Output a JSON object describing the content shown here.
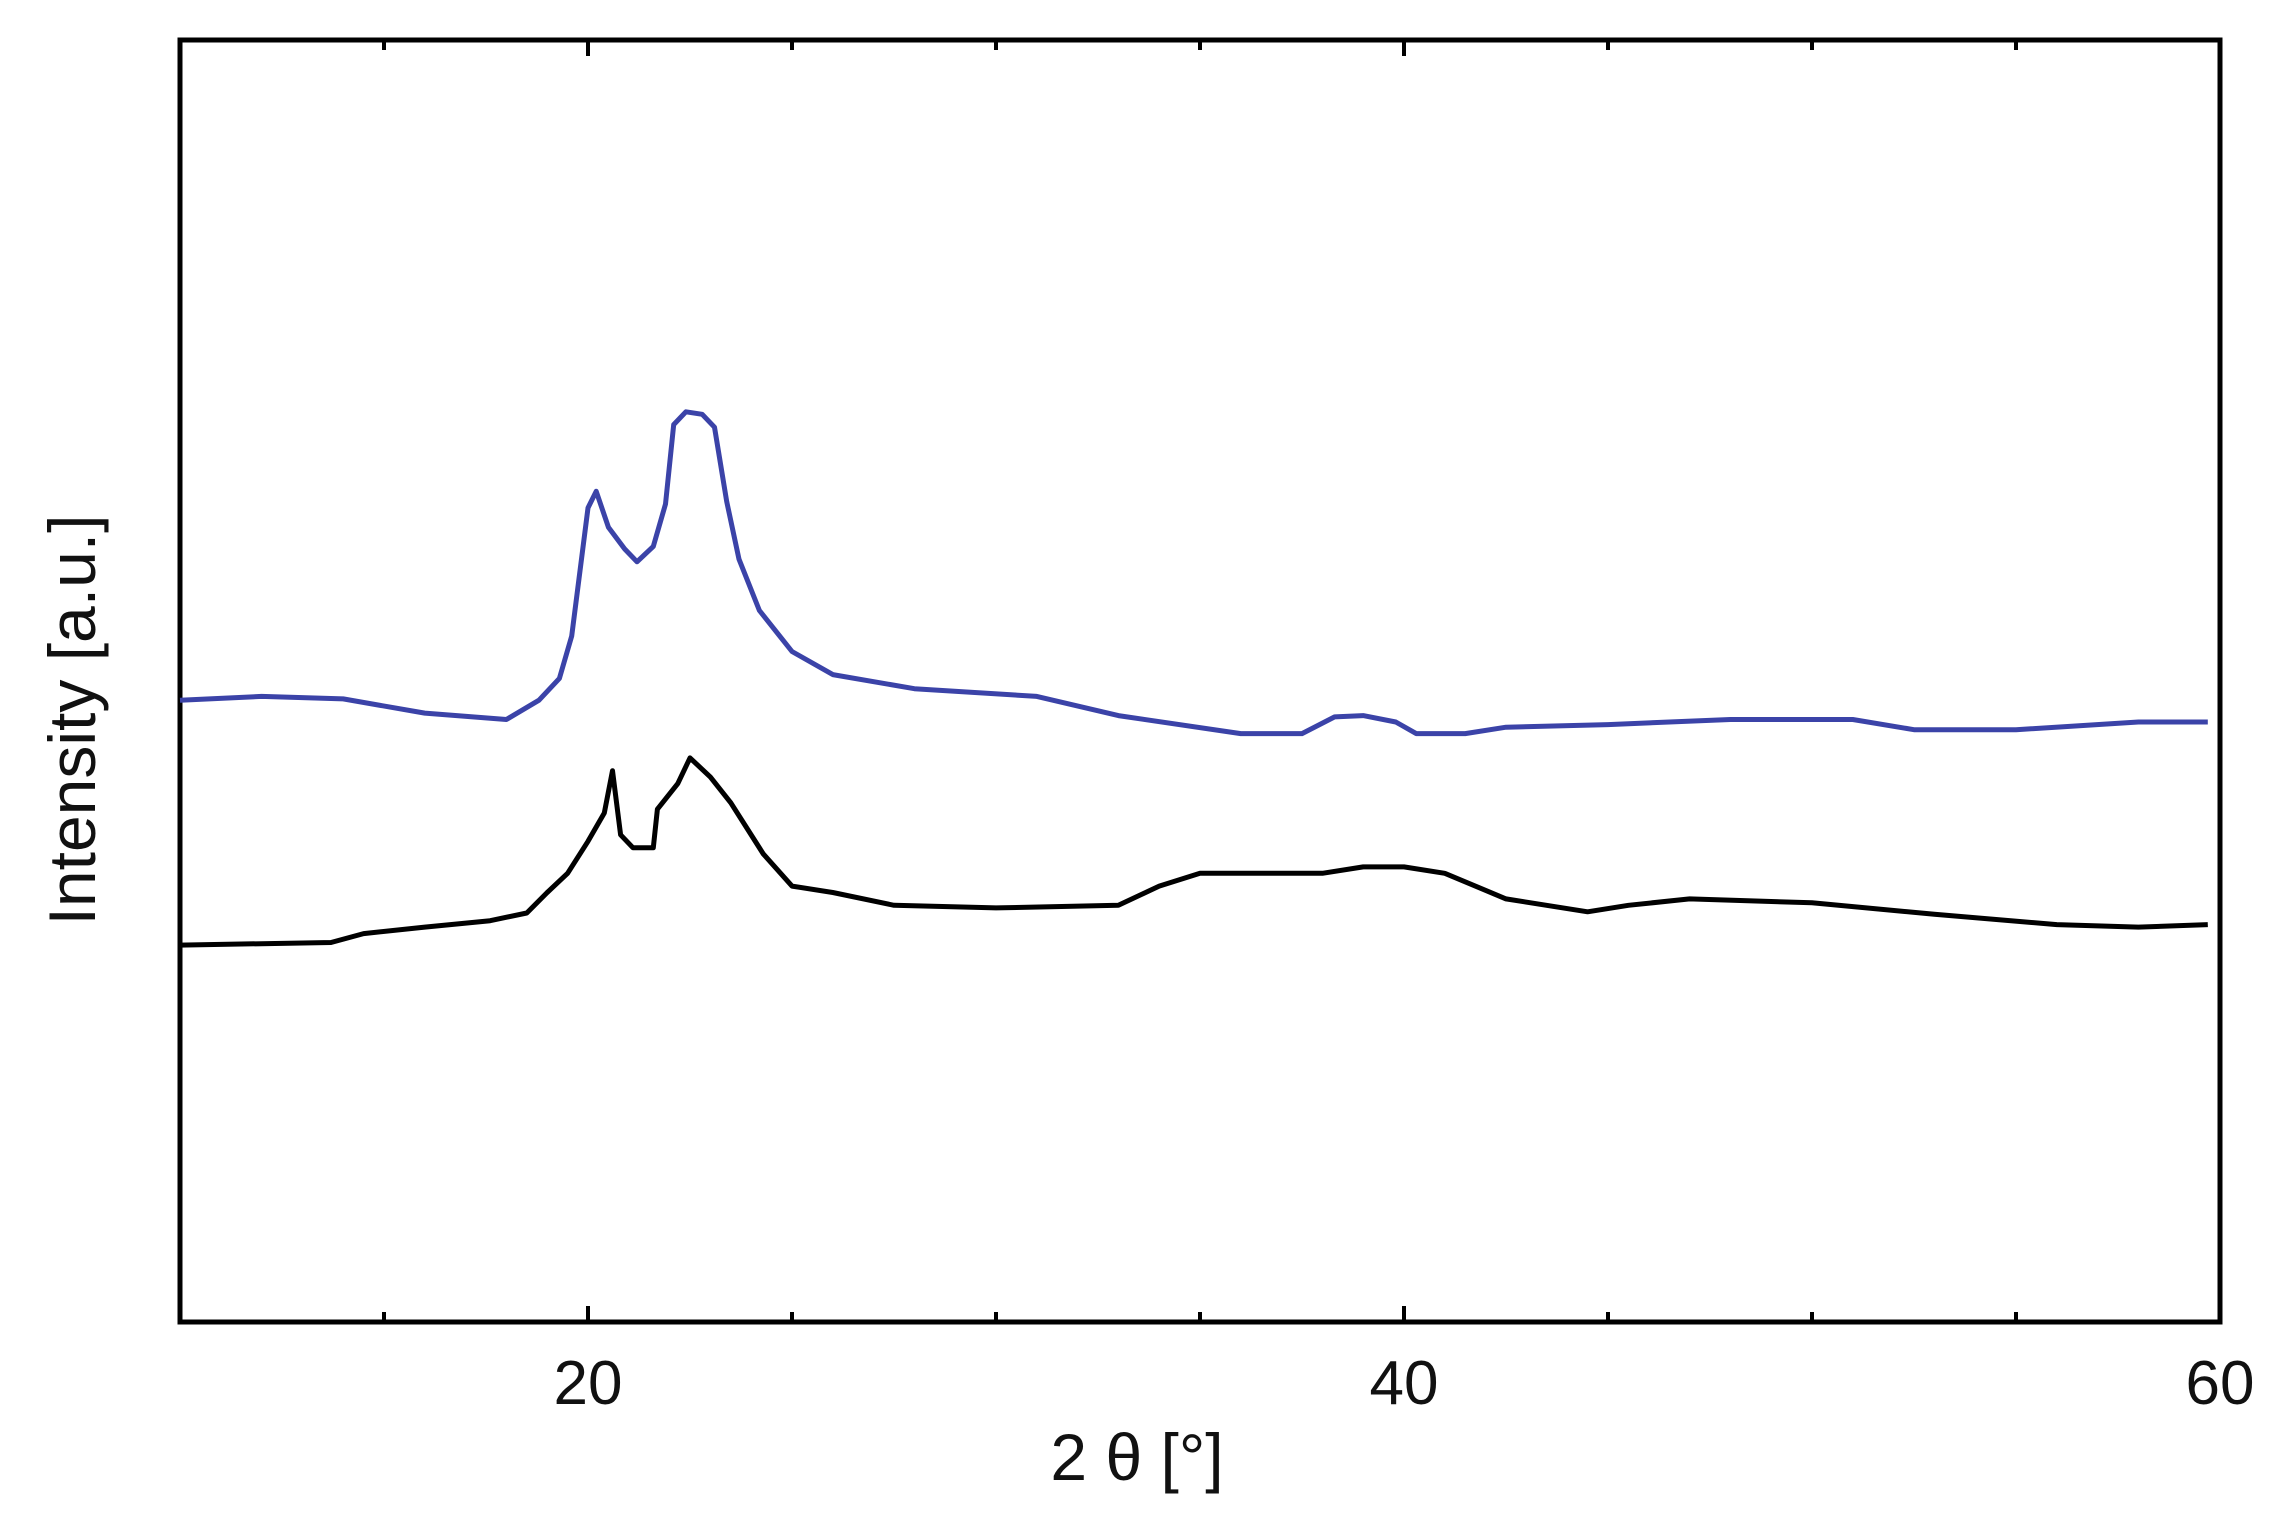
{
  "chart_data": {
    "type": "line",
    "title": "",
    "xlabel": "2 θ [°]",
    "ylabel": "Intensity [a.u.]",
    "xlim": [
      10,
      60
    ],
    "ylim": [
      0,
      100
    ],
    "x_ticks": [
      20,
      40,
      60
    ],
    "x_tick_labels": [
      "20",
      "40",
      "60"
    ],
    "y_tick_labels_shown": false,
    "grid": false,
    "legend": "none",
    "series": [
      {
        "color": "#3b43a8",
        "points": [
          [
            10,
            48.5
          ],
          [
            12,
            48.8
          ],
          [
            14,
            48.6
          ],
          [
            16,
            47.5
          ],
          [
            18,
            47.0
          ],
          [
            18.8,
            48.5
          ],
          [
            19.3,
            50.2
          ],
          [
            19.6,
            53.5
          ],
          [
            20.0,
            63.5
          ],
          [
            20.2,
            64.8
          ],
          [
            20.5,
            62.0
          ],
          [
            20.9,
            60.3
          ],
          [
            21.2,
            59.3
          ],
          [
            21.6,
            60.5
          ],
          [
            21.9,
            63.8
          ],
          [
            22.1,
            70.0
          ],
          [
            22.4,
            71.0
          ],
          [
            22.8,
            70.8
          ],
          [
            23.1,
            69.8
          ],
          [
            23.4,
            64.0
          ],
          [
            23.7,
            59.5
          ],
          [
            24.2,
            55.5
          ],
          [
            25.0,
            52.3
          ],
          [
            26.0,
            50.5
          ],
          [
            28.0,
            49.4
          ],
          [
            31.0,
            48.8
          ],
          [
            33.0,
            47.3
          ],
          [
            36.0,
            45.9
          ],
          [
            37.5,
            45.9
          ],
          [
            38.3,
            47.2
          ],
          [
            39.0,
            47.3
          ],
          [
            39.8,
            46.8
          ],
          [
            40.3,
            45.9
          ],
          [
            41.5,
            45.9
          ],
          [
            42.5,
            46.4
          ],
          [
            45,
            46.6
          ],
          [
            48,
            47.0
          ],
          [
            51,
            47.0
          ],
          [
            52.5,
            46.2
          ],
          [
            55,
            46.2
          ],
          [
            58,
            46.8
          ],
          [
            59.7,
            46.8
          ]
        ]
      },
      {
        "color": "#000000",
        "points": [
          [
            10,
            29.4
          ],
          [
            13.7,
            29.6
          ],
          [
            14.5,
            30.3
          ],
          [
            16.0,
            30.8
          ],
          [
            17.6,
            31.3
          ],
          [
            18.5,
            31.9
          ],
          [
            19.0,
            33.5
          ],
          [
            19.5,
            35.0
          ],
          [
            20.0,
            37.5
          ],
          [
            20.4,
            39.7
          ],
          [
            20.6,
            43.0
          ],
          [
            20.8,
            38.0
          ],
          [
            21.1,
            37.0
          ],
          [
            21.6,
            37.0
          ],
          [
            21.7,
            40.0
          ],
          [
            22.2,
            42.0
          ],
          [
            22.5,
            44.0
          ],
          [
            23.0,
            42.5
          ],
          [
            23.5,
            40.5
          ],
          [
            24.3,
            36.5
          ],
          [
            25.0,
            34.0
          ],
          [
            26.0,
            33.5
          ],
          [
            27.5,
            32.5
          ],
          [
            30.0,
            32.3
          ],
          [
            33.0,
            32.5
          ],
          [
            34.0,
            34.0
          ],
          [
            35.0,
            35.0
          ],
          [
            38.0,
            35.0
          ],
          [
            39.0,
            35.5
          ],
          [
            40.0,
            35.5
          ],
          [
            41.0,
            35.0
          ],
          [
            42.5,
            33.0
          ],
          [
            44.5,
            32.0
          ],
          [
            45.5,
            32.5
          ],
          [
            47.0,
            33.0
          ],
          [
            50.0,
            32.7
          ],
          [
            53.0,
            31.8
          ],
          [
            56.0,
            31.0
          ],
          [
            58.0,
            30.8
          ],
          [
            59.7,
            31.0
          ]
        ]
      }
    ]
  }
}
